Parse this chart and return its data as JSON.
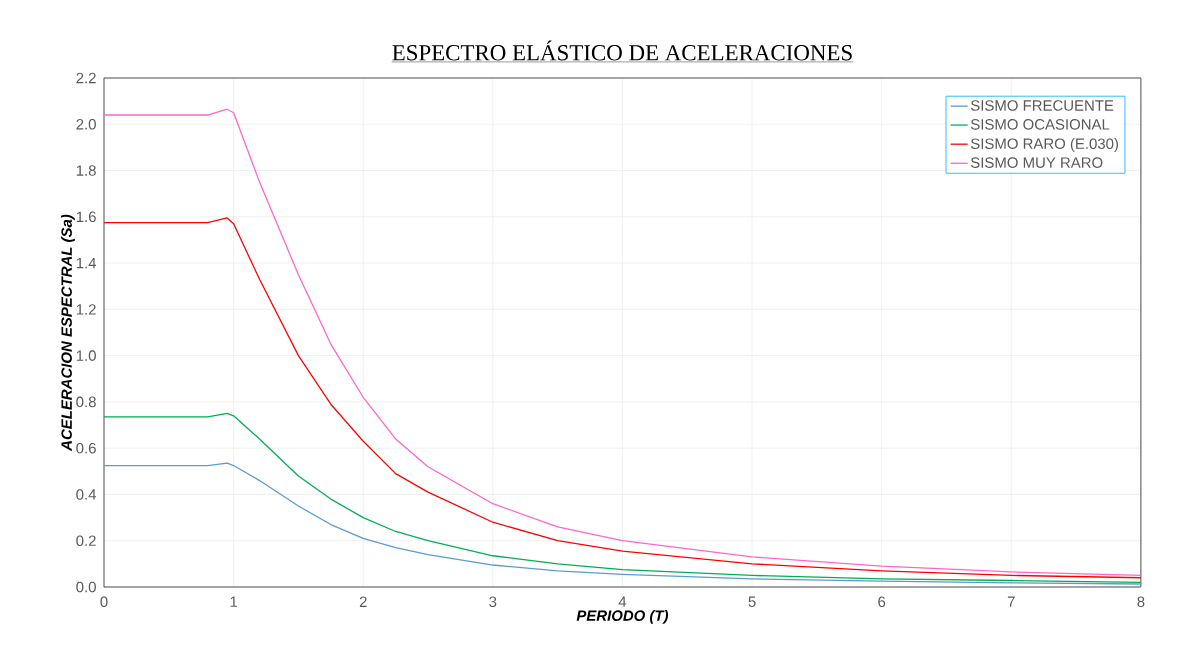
{
  "chart_data": {
    "type": "line",
    "title": "ESPECTRO  ELÁSTICO DE ACELERACIONES",
    "xlabel": "PERIODO (T)",
    "ylabel": "ACELERACION ESPECTRAL (Sa)",
    "x": [
      0,
      0.8,
      0.95,
      1.0,
      1.2,
      1.5,
      1.75,
      2,
      2.25,
      2.5,
      3,
      3.5,
      4,
      5,
      6,
      7,
      8
    ],
    "series": [
      {
        "name": "SISMO FRECUENTE",
        "color": "#5b9bd5",
        "values": [
          0.525,
          0.525,
          0.535,
          0.525,
          0.46,
          0.35,
          0.27,
          0.21,
          0.17,
          0.14,
          0.095,
          0.07,
          0.055,
          0.035,
          0.025,
          0.018,
          0.013
        ]
      },
      {
        "name": "SISMO OCASIONAL",
        "color": "#00b050",
        "values": [
          0.735,
          0.735,
          0.75,
          0.74,
          0.64,
          0.48,
          0.38,
          0.3,
          0.24,
          0.2,
          0.135,
          0.1,
          0.075,
          0.05,
          0.035,
          0.028,
          0.02
        ]
      },
      {
        "name": "SISMO RARO (E.030)",
        "color": "#ff0000",
        "values": [
          1.575,
          1.575,
          1.595,
          1.57,
          1.33,
          1.0,
          0.79,
          0.63,
          0.49,
          0.41,
          0.28,
          0.2,
          0.155,
          0.1,
          0.07,
          0.05,
          0.04
        ]
      },
      {
        "name": "SISMO MUY RARO",
        "color": "#ff66cc",
        "values": [
          2.04,
          2.04,
          2.065,
          2.05,
          1.75,
          1.35,
          1.05,
          0.82,
          0.64,
          0.52,
          0.36,
          0.26,
          0.2,
          0.13,
          0.09,
          0.065,
          0.05
        ]
      }
    ],
    "xlim": [
      0,
      8
    ],
    "xticks": [
      0,
      1,
      2,
      3,
      4,
      5,
      6,
      7,
      8
    ],
    "ylim": [
      0,
      2.2
    ],
    "yticks": [
      {
        "value": 0,
        "label": "0.0"
      },
      {
        "value": 0.2,
        "label": "0.2"
      },
      {
        "value": 0.4,
        "label": "0.4"
      },
      {
        "value": 0.6,
        "label": "0.6"
      },
      {
        "value": 0.8,
        "label": "0.8"
      },
      {
        "value": 1.0,
        "label": "1.0"
      },
      {
        "value": 1.2,
        "label": "1.2"
      },
      {
        "value": 1.4,
        "label": "1.4"
      },
      {
        "value": 1.6,
        "label": "1.6"
      },
      {
        "value": 1.8,
        "label": "1.8"
      },
      {
        "value": 2.0,
        "label": "2.0"
      },
      {
        "value": 2.2,
        "label": "2.2"
      }
    ],
    "grid": true,
    "legend": "top right",
    "marker": "none",
    "line_style": "solid"
  }
}
